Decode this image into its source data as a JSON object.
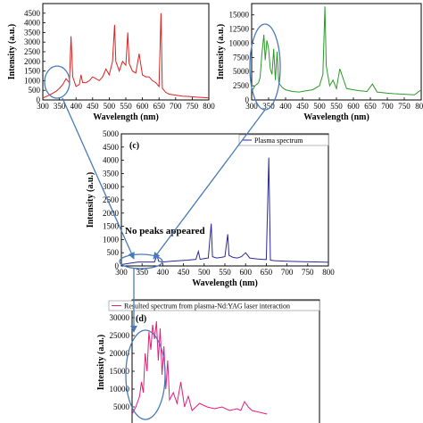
{
  "chart_data": [
    {
      "type": "line",
      "panel_label": "",
      "xlabel": "Wavelength (nm)",
      "ylabel": "Intensity (a.u.)",
      "xlim": [
        300,
        800
      ],
      "ylim": [
        0,
        5000
      ],
      "xticks": [
        300,
        350,
        400,
        450,
        500,
        550,
        600,
        650,
        700,
        750,
        800
      ],
      "yticks": [
        0,
        500,
        1000,
        1500,
        2000,
        2500,
        3000,
        3500,
        4000,
        4500
      ],
      "color": "#e02020",
      "legend": "",
      "series": [
        {
          "x": [
            300,
            320,
            340,
            350,
            360,
            370,
            380,
            385,
            390,
            400,
            410,
            415,
            420,
            430,
            440,
            450,
            460,
            470,
            480,
            490,
            500,
            510,
            516,
            520,
            530,
            540,
            550,
            556,
            560,
            570,
            580,
            590,
            600,
            610,
            620,
            630,
            640,
            650,
            656,
            660,
            670,
            680,
            700,
            720,
            740,
            760,
            780,
            800
          ],
          "y": [
            100,
            250,
            450,
            600,
            800,
            1100,
            900,
            3300,
            1200,
            700,
            800,
            1300,
            900,
            900,
            1000,
            1200,
            1100,
            1000,
            1200,
            1600,
            1300,
            2000,
            3900,
            2000,
            1500,
            2000,
            1800,
            3500,
            1900,
            1500,
            1400,
            2400,
            1300,
            1200,
            1200,
            1000,
            900,
            700,
            4500,
            600,
            400,
            300,
            250,
            200,
            180,
            150,
            130,
            100
          ]
        }
      ],
      "annotation": ""
    },
    {
      "type": "line",
      "panel_label": "",
      "xlabel": "Wavelength (nm)",
      "ylabel": "Intensity (a.u.)",
      "xlim": [
        300,
        800
      ],
      "ylim": [
        0,
        17000
      ],
      "xticks": [
        300,
        350,
        400,
        450,
        500,
        550,
        600,
        650,
        700,
        750,
        800
      ],
      "yticks": [
        0,
        2500,
        5000,
        7500,
        10000,
        12500,
        15000
      ],
      "color": "#2a9a2a",
      "legend": "",
      "series": [
        {
          "x": [
            300,
            310,
            320,
            325,
            330,
            336,
            340,
            345,
            350,
            355,
            360,
            365,
            370,
            375,
            380,
            390,
            400,
            420,
            440,
            460,
            480,
            500,
            510,
            516,
            520,
            530,
            540,
            550,
            560,
            580,
            600,
            620,
            640,
            656,
            670,
            700,
            720,
            750,
            780,
            800
          ],
          "y": [
            1500,
            2500,
            3000,
            4000,
            8000,
            11500,
            7000,
            10500,
            9000,
            5500,
            4500,
            9000,
            3500,
            8500,
            3000,
            2200,
            1800,
            1500,
            1400,
            1600,
            1800,
            2500,
            4500,
            16500,
            6000,
            2500,
            3500,
            2000,
            5500,
            2000,
            1800,
            1600,
            1500,
            2800,
            1400,
            1200,
            1100,
            1000,
            900,
            1800
          ]
        }
      ],
      "annotation": ""
    },
    {
      "type": "line",
      "panel_label": "(c)",
      "xlabel": "Wavelength (nm)",
      "ylabel": "Intensity (a.u.)",
      "xlim": [
        300,
        800
      ],
      "ylim": [
        0,
        5000
      ],
      "xticks": [
        300,
        350,
        400,
        450,
        500,
        550,
        600,
        650,
        700,
        750,
        800
      ],
      "yticks": [
        0,
        500,
        1000,
        1500,
        2000,
        2500,
        3000,
        3500,
        4000,
        4500,
        5000
      ],
      "color": "#2a2a9a",
      "legend": "Plasma spectrum",
      "series": [
        {
          "x": [
            300,
            320,
            340,
            360,
            380,
            386,
            390,
            400,
            420,
            440,
            460,
            480,
            486,
            490,
            500,
            510,
            517,
            520,
            530,
            540,
            550,
            557,
            560,
            570,
            580,
            590,
            600,
            610,
            620,
            630,
            640,
            650,
            656,
            660,
            670,
            700,
            740,
            780,
            800
          ],
          "y": [
            50,
            100,
            150,
            150,
            150,
            400,
            180,
            150,
            180,
            200,
            220,
            250,
            550,
            250,
            280,
            300,
            1600,
            350,
            300,
            320,
            350,
            1200,
            400,
            320,
            300,
            350,
            500,
            300,
            280,
            260,
            250,
            240,
            4100,
            220,
            200,
            180,
            160,
            150,
            140
          ]
        }
      ],
      "annotation": "No peaks appeared"
    },
    {
      "type": "line",
      "panel_label": "(d)",
      "xlabel": "",
      "ylabel": "Intensity (a.u.)",
      "xlim": [
        300,
        800
      ],
      "ylim": [
        0,
        35000
      ],
      "xticks": [],
      "yticks": [
        5000,
        10000,
        15000,
        20000,
        25000,
        30000
      ],
      "color": "#e0207a",
      "legend": "Resulted spectrum from plasma-Nd:YAG laser interaction",
      "series": [
        {
          "x": [
            300,
            310,
            320,
            325,
            330,
            335,
            340,
            345,
            350,
            355,
            360,
            365,
            370,
            375,
            380,
            385,
            390,
            395,
            400,
            410,
            420,
            430,
            440,
            450,
            460,
            480,
            500,
            520,
            540,
            560,
            580,
            590,
            600,
            610,
            620,
            640,
            660
          ],
          "y": [
            3000,
            5000,
            8000,
            12000,
            9000,
            20000,
            15000,
            26000,
            21000,
            28000,
            24000,
            29000,
            18000,
            27000,
            14000,
            22000,
            10000,
            18000,
            7000,
            9000,
            6000,
            12000,
            5000,
            8000,
            4000,
            6000,
            5000,
            4500,
            5000,
            4000,
            4500,
            4000,
            6500,
            5000,
            4000,
            3500,
            3000
          ]
        }
      ],
      "annotation": ""
    }
  ]
}
